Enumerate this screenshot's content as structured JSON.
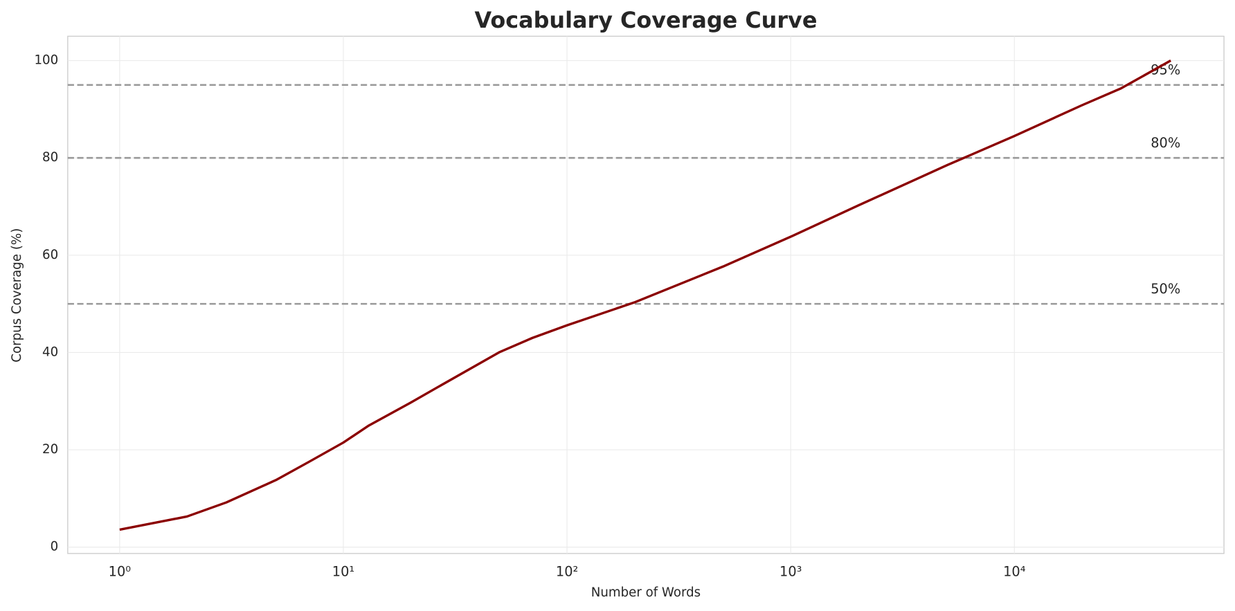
{
  "chart_data": {
    "type": "line",
    "title": "Vocabulary Coverage Curve",
    "xlabel": "Number of Words",
    "ylabel": "Corpus Coverage (%)",
    "xscale": "log",
    "grid": true,
    "x": [
      1,
      2,
      3,
      5,
      7,
      10,
      13,
      20,
      26,
      50,
      70,
      100,
      200,
      500,
      1000,
      2000,
      5000,
      10000,
      20000,
      30000,
      50000
    ],
    "series": [
      {
        "color": "#8b0000",
        "values": [
          3.6,
          6.3,
          9.2,
          13.8,
          17.5,
          21.5,
          25,
          29.7,
          32.7,
          40.1,
          43,
          45.6,
          50.3,
          57.7,
          63.8,
          70.2,
          78.5,
          84.5,
          90.8,
          94.3,
          100
        ]
      }
    ],
    "reference_lines": [
      {
        "value": 50,
        "label": "50%"
      },
      {
        "value": 80,
        "label": "80%"
      },
      {
        "value": 95,
        "label": "95%"
      }
    ],
    "xlim": [
      0.586,
      86500
    ],
    "ylim": [
      -1.3,
      105
    ],
    "xticks": [
      {
        "value": 1,
        "label": "10⁰"
      },
      {
        "value": 10,
        "label": "10¹"
      },
      {
        "value": 100,
        "label": "10²"
      },
      {
        "value": 1000,
        "label": "10³"
      },
      {
        "value": 10000,
        "label": "10⁴"
      }
    ],
    "yticks": [
      0,
      20,
      40,
      60,
      80,
      100
    ]
  }
}
